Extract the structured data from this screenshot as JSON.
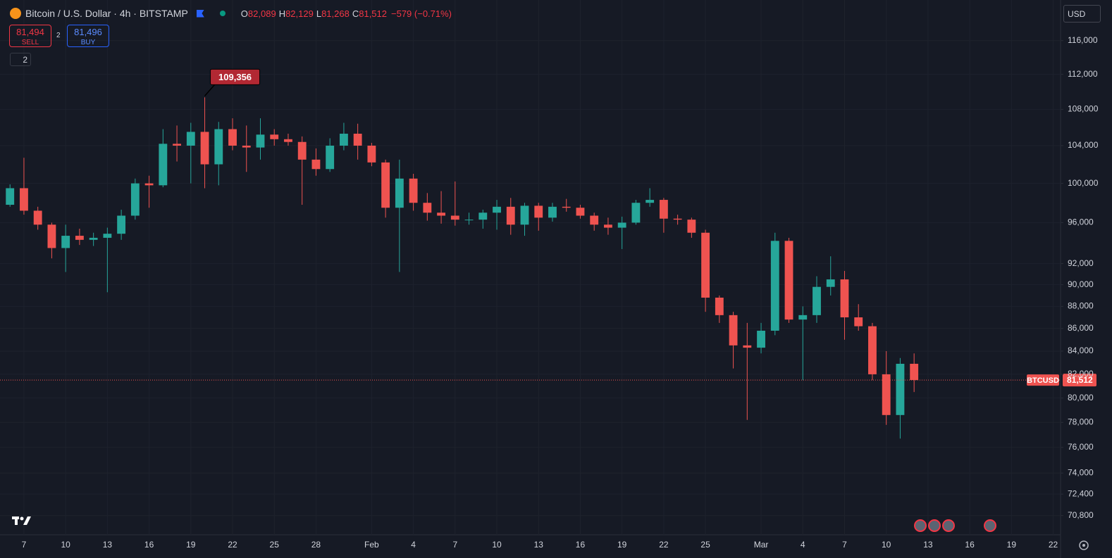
{
  "chart_data": {
    "type": "candlestick",
    "title": "Bitcoin / U.S. Dollar · 4h · BITSTAMP",
    "ohlc": [
      {
        "label": "O",
        "value": "82,089"
      },
      {
        "label": "H",
        "value": "82,129"
      },
      {
        "label": "L",
        "value": "81,268"
      },
      {
        "label": "C",
        "value": "81,512"
      }
    ],
    "change": "−579 (−0.71%)",
    "trade": {
      "sell_price": "81,494",
      "sell_label": "SELL",
      "spread": "2",
      "buy_price": "81,496",
      "buy_label": "BUY"
    },
    "indicators_count": "2",
    "currency": "USD",
    "symbol": "BTCUSD",
    "last_price": {
      "value": 81512,
      "label": "81,512"
    },
    "high_marker": {
      "value": 109356,
      "label": "109,356"
    },
    "up_color": "#26a69a",
    "down_color": "#ef5350",
    "log_scale": true,
    "grid": true,
    "ylim": [
      69400,
      121000
    ],
    "yticks": [
      {
        "value": 70800,
        "label": "70,800"
      },
      {
        "value": 72400,
        "label": "72,400"
      },
      {
        "value": 74000,
        "label": "74,000"
      },
      {
        "value": 76000,
        "label": "76,000"
      },
      {
        "value": 78000,
        "label": "78,000"
      },
      {
        "value": 80000,
        "label": "80,000"
      },
      {
        "value": 82000,
        "label": "82,000"
      },
      {
        "value": 84000,
        "label": "84,000"
      },
      {
        "value": 86000,
        "label": "86,000"
      },
      {
        "value": 88000,
        "label": "88,000"
      },
      {
        "value": 90000,
        "label": "90,000"
      },
      {
        "value": 92000,
        "label": "92,000"
      },
      {
        "value": 96000,
        "label": "96,000"
      },
      {
        "value": 100000,
        "label": "100,000"
      },
      {
        "value": 104000,
        "label": "104,000"
      },
      {
        "value": 108000,
        "label": "108,000"
      },
      {
        "value": 112000,
        "label": "112,000"
      },
      {
        "value": 116000,
        "label": "116,000"
      }
    ],
    "xlim": [
      -1.72,
      74.53
    ],
    "xticks": [
      {
        "value": 0,
        "label": "7"
      },
      {
        "value": 3,
        "label": "10"
      },
      {
        "value": 6,
        "label": "13"
      },
      {
        "value": 9,
        "label": "16"
      },
      {
        "value": 12,
        "label": "19"
      },
      {
        "value": 15,
        "label": "22"
      },
      {
        "value": 18,
        "label": "25"
      },
      {
        "value": 21,
        "label": "28"
      },
      {
        "value": 25,
        "label": "Feb"
      },
      {
        "value": 28,
        "label": "4"
      },
      {
        "value": 31,
        "label": "7"
      },
      {
        "value": 34,
        "label": "10"
      },
      {
        "value": 37,
        "label": "13"
      },
      {
        "value": 40,
        "label": "16"
      },
      {
        "value": 43,
        "label": "19"
      },
      {
        "value": 46,
        "label": "22"
      },
      {
        "value": 49,
        "label": "25"
      },
      {
        "value": 53,
        "label": "Mar"
      },
      {
        "value": 56,
        "label": "4"
      },
      {
        "value": 59,
        "label": "7"
      },
      {
        "value": 62,
        "label": "10"
      },
      {
        "value": 65,
        "label": "13"
      },
      {
        "value": 68,
        "label": "16"
      },
      {
        "value": 71,
        "label": "19"
      },
      {
        "value": 74,
        "label": "22"
      }
    ],
    "x": [
      -1,
      0,
      1,
      2,
      3,
      4,
      5,
      6,
      7,
      8,
      9,
      10,
      11,
      12,
      13,
      14,
      15,
      16,
      17,
      18,
      19,
      20,
      21,
      22,
      23,
      24,
      25,
      26,
      27,
      28,
      29,
      30,
      31,
      32,
      33,
      34,
      35,
      36,
      37,
      38,
      39,
      40,
      41,
      42,
      43,
      44,
      45,
      46,
      47,
      48,
      49,
      50,
      51,
      52,
      53,
      54,
      55,
      56,
      57,
      58,
      59,
      60,
      61,
      62,
      63,
      64
    ],
    "open": [
      97800,
      99500,
      97200,
      95800,
      93500,
      94700,
      94300,
      94500,
      94900,
      96700,
      100000,
      99800,
      104200,
      104000,
      105500,
      102000,
      105800,
      104000,
      103800,
      105200,
      104700,
      104400,
      102500,
      101500,
      104000,
      105300,
      104000,
      102200,
      97500,
      100500,
      98000,
      97000,
      96700,
      96300,
      96300,
      97000,
      97600,
      95800,
      97700,
      96500,
      97600,
      97500,
      96700,
      95800,
      95500,
      96000,
      98000,
      98300,
      96400,
      96300,
      95000,
      88800,
      87200,
      84500,
      84300,
      85800,
      94200,
      86800,
      87200,
      89800,
      90500,
      87000,
      86200,
      82000,
      78600,
      82900
    ],
    "high": [
      99900,
      102700,
      97600,
      96000,
      95800,
      95400,
      95000,
      95500,
      97300,
      100500,
      100800,
      105800,
      106200,
      106500,
      109356,
      106600,
      107000,
      106200,
      107000,
      105800,
      105300,
      105000,
      103700,
      104800,
      106500,
      106400,
      104300,
      102500,
      102500,
      101000,
      99000,
      99200,
      100200,
      97000,
      97300,
      98300,
      98500,
      98000,
      98000,
      98000,
      98400,
      97800,
      97000,
      96500,
      96600,
      98300,
      99500,
      98500,
      96800,
      96500,
      95300,
      89000,
      87500,
      86500,
      86500,
      95000,
      94500,
      88000,
      90800,
      92700,
      91300,
      88200,
      86500,
      84000,
      83400,
      83800
    ],
    "low": [
      97600,
      96800,
      95300,
      92500,
      91200,
      93800,
      93700,
      89300,
      94300,
      96300,
      97500,
      99600,
      102300,
      100000,
      99500,
      99800,
      103500,
      101200,
      102500,
      104000,
      104000,
      97800,
      100800,
      101200,
      103500,
      102500,
      101800,
      96500,
      91200,
      97200,
      96200,
      95900,
      95700,
      95800,
      95400,
      95300,
      94800,
      94700,
      95200,
      96100,
      97100,
      96400,
      95200,
      94800,
      93400,
      95800,
      97600,
      95000,
      95800,
      94500,
      87500,
      86500,
      82500,
      78200,
      83800,
      85400,
      86500,
      81500,
      86500,
      89000,
      85000,
      85800,
      81500,
      77800,
      76700,
      80500
    ],
    "close": [
      99500,
      97200,
      95800,
      93500,
      94700,
      94300,
      94500,
      94900,
      96700,
      100000,
      99800,
      104200,
      104000,
      105500,
      102000,
      105800,
      104000,
      103800,
      105200,
      104700,
      104400,
      102500,
      101500,
      104000,
      105300,
      104000,
      102200,
      97500,
      100500,
      98000,
      97000,
      96700,
      96300,
      96300,
      97000,
      97600,
      95800,
      97700,
      96500,
      97600,
      97500,
      96700,
      95800,
      95500,
      96000,
      98000,
      98300,
      96400,
      96300,
      95000,
      88800,
      87200,
      84500,
      84300,
      85800,
      94200,
      86800,
      87200,
      89800,
      90500,
      87000,
      86200,
      82000,
      78600,
      82900,
      81512
    ]
  }
}
